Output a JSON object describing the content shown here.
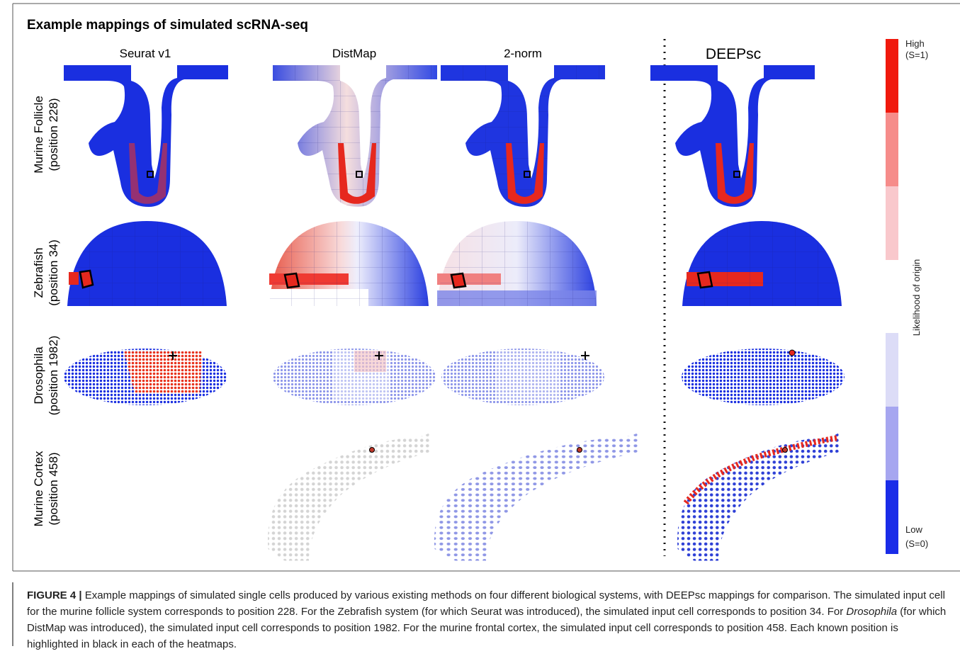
{
  "figure": {
    "title": "Example mappings of simulated scRNA-seq",
    "columns": [
      "Seurat v1",
      "DistMap",
      "2-norm",
      "DEEPsc"
    ],
    "rows": [
      {
        "name": "Murine Follicle",
        "position": "(position 228)"
      },
      {
        "name": "Zebrafish",
        "position": "(position 34)"
      },
      {
        "name": "Drosophila",
        "position": "(position 1982)"
      },
      {
        "name": "Murine Cortex",
        "position": "(position 458)"
      }
    ],
    "colorbar": {
      "high": "High",
      "high_note": "(S=1)",
      "low": "Low",
      "low_note": "(S=0)",
      "label": "Likelihood of origin"
    }
  },
  "caption": {
    "label": "FIGURE 4 |",
    "parts": [
      " Example mappings of simulated single cells produced by various existing methods on four different biological systems, with DEEPsc mappings for comparison. The simulated input cell for the murine follicle system corresponds to position 228. For the Zebrafish system (for which Seurat was introduced), the simulated input cell corresponds to position 34. For ",
      "Drosophila",
      " (for which DistMap was introduced), the simulated input cell corresponds to position 1982. For the murine frontal cortex, the simulated input cell corresponds to position 458. Each known position is highlighted in black in each of the heatmaps."
    ]
  }
}
